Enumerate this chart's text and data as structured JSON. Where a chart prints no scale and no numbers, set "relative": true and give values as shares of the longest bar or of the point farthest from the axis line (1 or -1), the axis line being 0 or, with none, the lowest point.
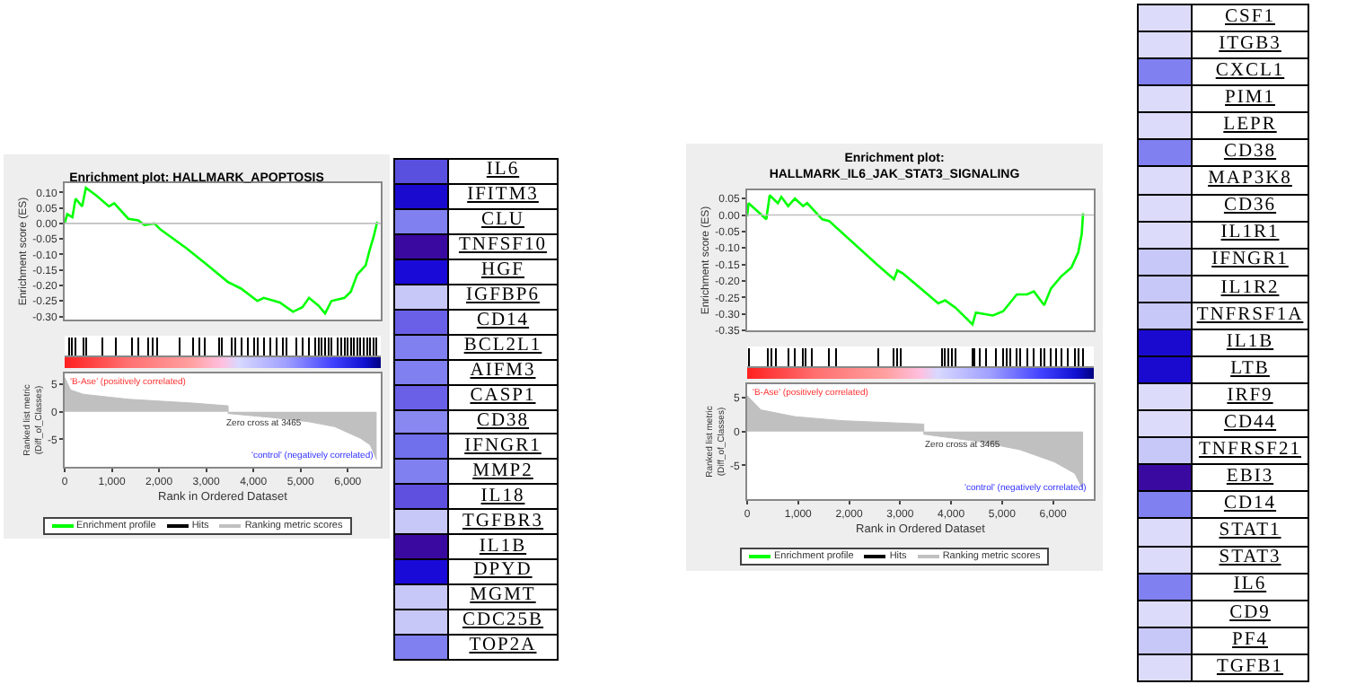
{
  "chart_data": [
    {
      "type": "line",
      "title": "Enrichment plot: HALLMARK_APOPTOSIS",
      "ylabel": "Enrichment score (ES)",
      "tick_labels": "y",
      "xlim": [
        0,
        6700
      ],
      "ylim": [
        -0.31,
        0.13
      ],
      "yticks": [
        {
          "value": 0.1,
          "label": "0.10"
        },
        {
          "value": 0.05,
          "label": "0.05"
        },
        {
          "value": 0,
          "label": "0.00"
        },
        {
          "value": -0.05,
          "label": "-0.05"
        },
        {
          "value": -0.1,
          "label": "-0.10"
        },
        {
          "value": -0.15,
          "label": "-0.15"
        },
        {
          "value": -0.2,
          "label": "-0.20"
        },
        {
          "value": -0.25,
          "label": "-0.25"
        },
        {
          "value": -0.3,
          "label": "-0.30"
        }
      ],
      "ref_lines": [
        {
          "axis": "y",
          "value": 0,
          "color": "#c0c0c0"
        }
      ],
      "series": [
        {
          "name": "Enrichment profile",
          "color": "#00ff00",
          "x": [
            0,
            55,
            164,
            232,
            370,
            450,
            670,
            940,
            1050,
            1350,
            1560,
            1690,
            1900,
            2035,
            2580,
            2990,
            3470,
            3740,
            4085,
            4220,
            4560,
            4840,
            5040,
            5180,
            5380,
            5520,
            5655,
            5930,
            6065,
            6200,
            6380,
            6475,
            6545,
            6625
          ],
          "values": [
            0,
            0.03,
            0.02,
            0.08,
            0.055,
            0.115,
            0.09,
            0.055,
            0.065,
            0.015,
            0.01,
            -0.005,
            0,
            -0.02,
            -0.08,
            -0.13,
            -0.19,
            -0.21,
            -0.25,
            -0.24,
            -0.255,
            -0.285,
            -0.27,
            -0.24,
            -0.265,
            -0.29,
            -0.25,
            -0.24,
            -0.22,
            -0.165,
            -0.135,
            -0.08,
            -0.045,
            0.005
          ]
        }
      ]
    },
    {
      "type": "bar",
      "relative": true,
      "tick_labels": false,
      "xlim": [
        0,
        6700
      ],
      "series": [
        {
          "name": "Hits",
          "color": "#000000",
          "x": [
            96,
            150,
            232,
            396,
            464,
            806,
            1079,
            1421,
            1557,
            1762,
            1872,
            1967,
            2445,
            2719,
            2855,
            2964,
            3265,
            3333,
            3538,
            3607,
            3743,
            3880,
            4016,
            4085,
            4221,
            4358,
            4495,
            4631,
            4699,
            4904,
            5041,
            5178,
            5314,
            5383,
            5451,
            5519,
            5587,
            5656,
            5792,
            5861,
            5929,
            5997,
            6066,
            6134,
            6202,
            6270,
            6339,
            6407,
            6475,
            6544,
            6612
          ],
          "values": [
            1,
            1,
            1,
            1,
            1,
            1,
            1,
            1,
            1,
            1,
            1,
            1,
            1,
            1,
            1,
            1,
            1,
            1,
            1,
            1,
            1,
            1,
            1,
            1,
            1,
            1,
            1,
            1,
            1,
            1,
            1,
            1,
            1,
            1,
            1,
            1,
            1,
            1,
            1,
            1,
            1,
            1,
            1,
            1,
            1,
            1,
            1,
            1,
            1,
            1,
            1
          ]
        }
      ]
    },
    {
      "type": "area",
      "xlabel": "Rank in Ordered Dataset",
      "ylabel": "Ranked list metric (Diff_of_Classes)",
      "legend": "bottom",
      "xlim": [
        0,
        6700
      ],
      "xticks": [
        0,
        {
          "value": 1000,
          "label": "1,000"
        },
        {
          "value": 2000,
          "label": "2,000"
        },
        {
          "value": 3000,
          "label": "3,000"
        },
        {
          "value": 4000,
          "label": "4,000"
        },
        {
          "value": 5000,
          "label": "5,000"
        },
        {
          "value": 6000,
          "label": "6,000"
        }
      ],
      "ylim": [
        -10,
        7
      ],
      "yticks": [
        5,
        0,
        -5
      ],
      "annotations": [
        "'B-Ase' (positively correlated)",
        "Zero cross at 3465",
        "'control' (negatively correlated)"
      ],
      "series": [
        {
          "name": "Ranking metric scores",
          "color": "#c0c0c0",
          "x": [
            0,
            123,
            396,
            1352,
            2719,
            3465,
            3466,
            4358,
            5178,
            5724,
            6270,
            6475,
            6612
          ],
          "values": [
            6.3,
            4.0,
            3.2,
            2.3,
            1.6,
            1.1,
            -0.3,
            -1.0,
            -1.8,
            -2.7,
            -4.8,
            -6.0,
            -8.7
          ]
        }
      ]
    },
    {
      "type": "other",
      "categories": [
        "IL6",
        "IFITM3",
        "CLU",
        "TNFSF10",
        "HGF",
        "IGFBP6",
        "CD14",
        "BCL2L1",
        "AIFM3",
        "CASP1",
        "CD38",
        "IFNGR1",
        "MMP2",
        "IL18",
        "TGFBR3",
        "IL1B",
        "DPYD",
        "MGMT",
        "CDC25B",
        "TOP2A"
      ],
      "colors": [
        "#5a50e0",
        "#1a0ad0",
        "#8080f0",
        "#3a0aa0",
        "#1a0ad8",
        "#c8c8f8",
        "#6a60e8",
        "#8080f0",
        "#8080f0",
        "#6a60e8",
        "#8888f0",
        "#7070ec",
        "#8080f0",
        "#6050e0",
        "#c8c8f8",
        "#3a0aa0",
        "#1a0ad8",
        "#c8c8f8",
        "#c8c8f8",
        "#8080f0"
      ]
    },
    {
      "type": "line",
      "title": "Enrichment plot:\nHALLMARK_IL6_JAK_STAT3_SIGNALING",
      "ylabel": "Enrichment score (ES)",
      "tick_labels": "y",
      "xlim": [
        0,
        6800
      ],
      "ylim": [
        -0.35,
        0.075
      ],
      "yticks": [
        {
          "value": 0.05,
          "label": "0.05"
        },
        {
          "value": 0,
          "label": "0.00"
        },
        {
          "value": -0.05,
          "label": "-0.05"
        },
        {
          "value": -0.1,
          "label": "-0.10"
        },
        {
          "value": -0.15,
          "label": "-0.15"
        },
        {
          "value": -0.2,
          "label": "-0.20"
        },
        {
          "value": -0.25,
          "label": "-0.25"
        },
        {
          "value": -0.3,
          "label": "-0.30"
        },
        {
          "value": -0.35,
          "label": "-0.35"
        }
      ],
      "ref_lines": [
        {
          "axis": "y",
          "value": 0,
          "color": "#c0c0c0"
        }
      ],
      "series": [
        {
          "name": "Enrichment profile",
          "color": "#00ff00",
          "x": [
            0,
            27,
            375,
            442,
            603,
            670,
            804,
            937,
            1098,
            1178,
            1473,
            1607,
            2545,
            2880,
            2947,
            3054,
            3750,
            3884,
            4085,
            4420,
            4487,
            4821,
            5022,
            5290,
            5491,
            5625,
            5826,
            5960,
            6161,
            6362,
            6496,
            6563,
            6590
          ],
          "values": [
            -0.004,
            0.036,
            -0.013,
            0.06,
            0.036,
            0.055,
            0.027,
            0.05,
            0.027,
            0.036,
            -0.013,
            -0.018,
            -0.15,
            -0.195,
            -0.168,
            -0.177,
            -0.268,
            -0.259,
            -0.281,
            -0.332,
            -0.296,
            -0.305,
            -0.292,
            -0.241,
            -0.241,
            -0.232,
            -0.274,
            -0.223,
            -0.186,
            -0.159,
            -0.113,
            -0.058,
            0.005
          ]
        }
      ]
    },
    {
      "type": "bar",
      "relative": true,
      "tick_labels": false,
      "xlim": [
        0,
        6800
      ],
      "series": [
        {
          "name": "Hits",
          "color": "#000000",
          "x": [
            40,
            402,
            469,
            563,
            804,
            938,
            1098,
            1138,
            1272,
            1607,
            1741,
            2571,
            2880,
            2947,
            3013,
            3817,
            3884,
            3951,
            4018,
            4085,
            4420,
            4460,
            4554,
            4688,
            4888,
            5022,
            5089,
            5156,
            5290,
            5357,
            5491,
            5625,
            5759,
            5826,
            5960,
            6054,
            6161,
            6295,
            6429,
            6496,
            6590
          ],
          "values": [
            1,
            1,
            1,
            1,
            1,
            1,
            1,
            1,
            1,
            1,
            1,
            1,
            1,
            1,
            1,
            1,
            1,
            1,
            1,
            1,
            1,
            1,
            1,
            1,
            1,
            1,
            1,
            1,
            1,
            1,
            1,
            1,
            1,
            1,
            1,
            1,
            1,
            1,
            1,
            1,
            1
          ]
        }
      ]
    },
    {
      "type": "area",
      "xlabel": "Rank in Ordered Dataset",
      "ylabel": "Ranked list metric (Diff_of_Classes)",
      "legend": "bottom",
      "xlim": [
        0,
        6800
      ],
      "xticks": [
        0,
        {
          "value": 1000,
          "label": "1,000"
        },
        {
          "value": 2000,
          "label": "2,000"
        },
        {
          "value": 3000,
          "label": "3,000"
        },
        {
          "value": 4000,
          "label": "4,000"
        },
        {
          "value": 5000,
          "label": "5,000"
        },
        {
          "value": 6000,
          "label": "6,000"
        }
      ],
      "ylim": [
        -10,
        7
      ],
      "yticks": [
        5,
        0,
        -5
      ],
      "annotations": [
        "'B-Ase' (positively correlated)",
        "Zero cross at 3465",
        "'control' (negatively correlated)"
      ],
      "series": [
        {
          "name": "Ranking metric scores",
          "color": "#c0c0c0",
          "x": [
            0,
            268,
            938,
            1875,
            3465,
            3466,
            4553,
            5357,
            6027,
            6428,
            6590
          ],
          "values": [
            5.3,
            3.2,
            2.2,
            1.6,
            1.1,
            -0.4,
            -1.5,
            -2.7,
            -4.5,
            -6.2,
            -8.6
          ]
        }
      ]
    },
    {
      "type": "other",
      "categories": [
        "CSF1",
        "ITGB3",
        "CXCL1",
        "PIM1",
        "LEPR",
        "CD38",
        "MAP3K8",
        "CD36",
        "IL1R1",
        "IFNGR1",
        "IL1R2",
        "TNFRSF1A",
        "IL1B",
        "LTB",
        "IRF9",
        "CD44",
        "TNFRSF21",
        "EBI3",
        "CD14",
        "STAT1",
        "STAT3",
        "IL6",
        "CD9",
        "PF4",
        "TGFB1"
      ],
      "colors": [
        "#dcdcfa",
        "#dcdcfa",
        "#8080f0",
        "#dcdcfa",
        "#dcdcfa",
        "#8080f0",
        "#dcdcfa",
        "#dcdcfa",
        "#dcdcfa",
        "#c8c8f8",
        "#c8c8f8",
        "#c8c8f8",
        "#1a0ad0",
        "#1a0ad0",
        "#dcdcfa",
        "#dcdcfa",
        "#c8c8f8",
        "#3a0aa0",
        "#8080f0",
        "#dcdcfa",
        "#dcdcfa",
        "#8080f0",
        "#dcdcfa",
        "#c8c8f8",
        "#dcdcfa"
      ]
    }
  ]
}
